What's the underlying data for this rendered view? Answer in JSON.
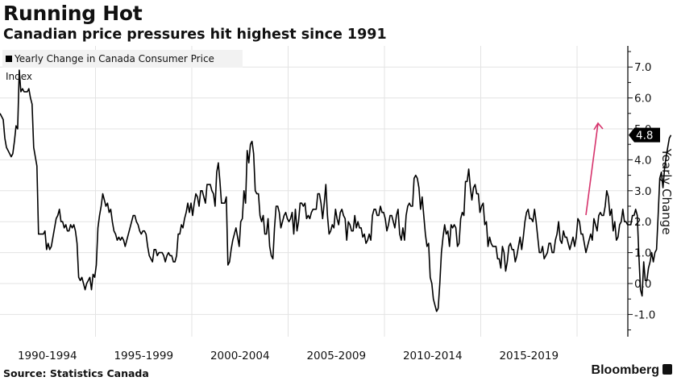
{
  "header": {
    "title": "Running Hot",
    "subtitle": "Canadian price pressures hit highest since 1991"
  },
  "legend": {
    "label": "Yearly Change in Canada Consumer Price Index"
  },
  "footer": {
    "source": "Source: Statistics Canada",
    "brand": "Bloomberg"
  },
  "colors": {
    "line": "#000000",
    "arrow": "#d6336c",
    "grid": "#e3e3e3",
    "legend_bg": "#f2f2f2"
  },
  "chart_data": {
    "type": "line",
    "title": "Running Hot",
    "subtitle": "Canadian price pressures hit highest since 1991",
    "xlabel": "",
    "ylabel": "Yearly Change",
    "ylim": [
      -1.7,
      7.6
    ],
    "yticks": [
      "7.0",
      "6.0",
      "5.0",
      "4.0",
      "3.0",
      "2.0",
      "1.0",
      "0.0",
      "-1.0"
    ],
    "yticks_values": [
      7,
      6,
      5,
      4,
      3,
      2,
      1,
      0,
      -1
    ],
    "x_categories": [
      "1990-1994",
      "1995-1999",
      "2000-2004",
      "2005-2009",
      "2010-2014",
      "2015-2019"
    ],
    "x_start": "1990-01",
    "x_end": "2021-10",
    "grid": true,
    "legend": "top-left",
    "last_value_label": "4.8",
    "annotation": "upward red arrow near 2021",
    "series": [
      {
        "name": "Yearly Change in Canada Consumer Price Index",
        "frequency": "monthly",
        "values": [
          5.5,
          5.4,
          5.3,
          4.7,
          4.4,
          4.3,
          4.2,
          4.1,
          4.2,
          4.6,
          5.1,
          5.0,
          6.9,
          6.2,
          6.3,
          6.2,
          6.2,
          6.2,
          6.3,
          6.0,
          5.8,
          4.4,
          4.1,
          3.8,
          1.6,
          1.6,
          1.6,
          1.6,
          1.7,
          1.1,
          1.3,
          1.1,
          1.2,
          1.5,
          1.8,
          2.1,
          2.2,
          2.4,
          2.0,
          2.0,
          1.8,
          1.9,
          1.7,
          1.7,
          1.9,
          1.8,
          1.9,
          1.7,
          1.3,
          0.2,
          0.1,
          0.2,
          0.0,
          -0.2,
          0.0,
          0.1,
          0.2,
          -0.2,
          0.3,
          0.2,
          0.6,
          1.8,
          2.2,
          2.5,
          2.9,
          2.7,
          2.5,
          2.6,
          2.3,
          2.4,
          2.0,
          1.7,
          1.6,
          1.4,
          1.5,
          1.4,
          1.5,
          1.4,
          1.2,
          1.4,
          1.6,
          1.8,
          2.0,
          2.2,
          2.2,
          2.0,
          1.9,
          1.7,
          1.6,
          1.7,
          1.7,
          1.6,
          1.2,
          0.9,
          0.8,
          0.7,
          1.1,
          1.1,
          0.9,
          1.0,
          1.0,
          1.0,
          0.9,
          0.7,
          0.9,
          1.0,
          0.9,
          0.9,
          0.7,
          0.7,
          0.9,
          1.6,
          1.6,
          1.9,
          1.8,
          2.1,
          2.3,
          2.6,
          2.3,
          2.6,
          2.2,
          2.6,
          2.9,
          2.8,
          2.5,
          3.0,
          3.0,
          2.8,
          2.6,
          3.2,
          3.2,
          3.2,
          3.0,
          2.9,
          2.5,
          3.6,
          3.9,
          3.3,
          2.6,
          2.6,
          2.6,
          2.8,
          0.6,
          0.7,
          1.1,
          1.4,
          1.6,
          1.8,
          1.5,
          1.2,
          2.0,
          2.1,
          3.0,
          2.6,
          4.3,
          3.9,
          4.5,
          4.6,
          4.2,
          3.0,
          2.9,
          2.9,
          2.2,
          2.0,
          2.2,
          1.6,
          1.6,
          2.1,
          1.2,
          0.9,
          0.8,
          1.8,
          2.5,
          2.5,
          2.3,
          1.8,
          2.0,
          2.2,
          2.3,
          2.1,
          2.0,
          2.1,
          2.3,
          1.6,
          2.4,
          1.7,
          2.0,
          2.6,
          2.6,
          2.5,
          2.6,
          2.1,
          2.2,
          2.1,
          2.3,
          2.4,
          2.4,
          2.4,
          2.9,
          2.9,
          2.6,
          2.1,
          2.6,
          3.2,
          2.2,
          1.6,
          1.7,
          1.9,
          1.8,
          2.4,
          2.1,
          1.9,
          2.3,
          2.4,
          2.2,
          2.1,
          1.4,
          2.0,
          1.9,
          1.7,
          1.7,
          2.2,
          1.8,
          2.0,
          1.8,
          1.8,
          1.5,
          1.6,
          1.3,
          1.4,
          1.6,
          1.4,
          2.2,
          2.4,
          2.4,
          2.2,
          2.2,
          2.5,
          2.3,
          2.3,
          2.1,
          1.7,
          1.9,
          2.2,
          2.2,
          2.0,
          1.8,
          2.2,
          2.4,
          1.6,
          1.4,
          1.8,
          1.4,
          2.2,
          2.5,
          2.6,
          2.5,
          2.5,
          3.4,
          3.5,
          3.4,
          3.1,
          2.4,
          2.8,
          2.2,
          1.6,
          1.2,
          1.3,
          0.2,
          0.0,
          -0.5,
          -0.7,
          -0.9,
          -0.8,
          0.0,
          1.0,
          1.5,
          1.9,
          1.6,
          1.7,
          1.2,
          1.9,
          1.8,
          1.9,
          1.8,
          1.2,
          1.3,
          2.1,
          2.3,
          2.2,
          3.3,
          3.3,
          3.7,
          3.1,
          2.7,
          3.1,
          3.2,
          2.9,
          2.9,
          2.3,
          2.5,
          2.6,
          1.9,
          2.0,
          1.2,
          1.5,
          1.3,
          1.2,
          1.2,
          1.2,
          0.8,
          0.8,
          0.5,
          1.2,
          1.0,
          0.4,
          0.7,
          1.2,
          1.3,
          1.1,
          1.1,
          0.7,
          0.9,
          1.2,
          1.5,
          1.1,
          1.5,
          2.0,
          2.3,
          2.4,
          2.1,
          2.1,
          2.0,
          2.4,
          2.0,
          1.5,
          1.0,
          1.0,
          1.2,
          0.8,
          0.9,
          1.0,
          1.3,
          1.3,
          1.0,
          1.0,
          1.4,
          1.6,
          2.0,
          1.4,
          1.3,
          1.7,
          1.5,
          1.5,
          1.3,
          1.1,
          1.3,
          1.5,
          1.2,
          1.5,
          2.1,
          2.0,
          1.6,
          1.6,
          1.3,
          1.0,
          1.2,
          1.4,
          1.6,
          1.4,
          2.1,
          1.9,
          1.7,
          2.2,
          2.3,
          2.2,
          2.2,
          2.5,
          3.0,
          2.8,
          2.2,
          2.4,
          1.7,
          2.0,
          1.4,
          1.5,
          1.9,
          2.0,
          2.4,
          2.0,
          2.0,
          1.9,
          1.9,
          1.9,
          2.2,
          2.2,
          2.4,
          2.2,
          0.9,
          -0.2,
          -0.4,
          0.7,
          0.1,
          0.1,
          0.5,
          0.7,
          1.0,
          0.7,
          1.0,
          1.1,
          2.2,
          3.4,
          3.6,
          3.1,
          3.7,
          4.1,
          4.4,
          4.7,
          4.8
        ]
      }
    ]
  }
}
